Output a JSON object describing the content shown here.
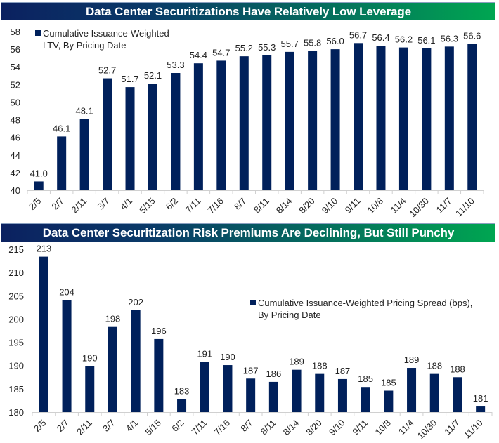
{
  "colors": {
    "bar": "#00205b",
    "axis": "#d0d0d0",
    "band_start": "#0b2160",
    "band_end": "#00a651"
  },
  "chart_data": [
    {
      "type": "bar",
      "title": "Data Center Securitizations Have Relatively Low Leverage",
      "legend": {
        "label_line1": "Cumulative Issuance-Weighted",
        "label_line2": "LTV, By Pricing Date",
        "placement": "top-left"
      },
      "categories": [
        "2/5",
        "2/7",
        "2/11",
        "3/7",
        "4/1",
        "5/15",
        "6/2",
        "7/11",
        "7/16",
        "8/7",
        "8/11",
        "8/14",
        "8/20",
        "9/10",
        "9/11",
        "10/8",
        "11/4",
        "10/30",
        "11/7",
        "11/10"
      ],
      "values": [
        41.0,
        46.1,
        48.1,
        52.7,
        51.7,
        52.1,
        53.3,
        54.4,
        54.7,
        55.2,
        55.3,
        55.7,
        55.8,
        56.0,
        56.7,
        56.4,
        56.2,
        56.1,
        56.3,
        56.6
      ],
      "data_labels": [
        "41.0",
        "46.1",
        "48.1",
        "52.7",
        "51.7",
        "52.1",
        "53.3",
        "54.4",
        "54.7",
        "55.2",
        "55.3",
        "55.7",
        "55.8",
        "56.0",
        "56.7",
        "56.4",
        "56.2",
        "56.1",
        "56.3",
        "56.6"
      ],
      "yticks": [
        "40",
        "42",
        "44",
        "46",
        "48",
        "50",
        "52",
        "54",
        "56",
        "58"
      ],
      "ylim": [
        40,
        58
      ],
      "xlabel": "",
      "ylabel": "",
      "grid": false
    },
    {
      "type": "bar",
      "title": "Data Center Securitization Risk Premiums Are Declining, But Still Punchy",
      "legend": {
        "label_line1": "Cumulative Issuance-Weighted Pricing Spread (bps),",
        "label_line2": "By Pricing Date",
        "placement": "center-right"
      },
      "categories": [
        "2/5",
        "2/7",
        "2/11",
        "3/7",
        "4/1",
        "5/15",
        "6/2",
        "7/11",
        "7/16",
        "8/7",
        "8/11",
        "8/14",
        "8/20",
        "9/10",
        "9/11",
        "10/8",
        "11/4",
        "10/30",
        "11/7",
        "11/10"
      ],
      "values": [
        213.4,
        204.1,
        189.9,
        198.3,
        201.9,
        195.7,
        182.8,
        190.8,
        190.1,
        187.2,
        186.5,
        189.1,
        188.2,
        187.1,
        185.4,
        184.6,
        189.5,
        188.2,
        187.5,
        181.2
      ],
      "data_labels": [
        "213",
        "204",
        "190",
        "198",
        "202",
        "196",
        "183",
        "191",
        "190",
        "187",
        "186",
        "189",
        "188",
        "187",
        "185",
        "185",
        "189",
        "188",
        "188",
        "181"
      ],
      "yticks": [
        "180",
        "185",
        "190",
        "195",
        "200",
        "205",
        "210",
        "215"
      ],
      "ylim": [
        180,
        215
      ],
      "xlabel": "",
      "ylabel": "",
      "grid": false
    }
  ]
}
